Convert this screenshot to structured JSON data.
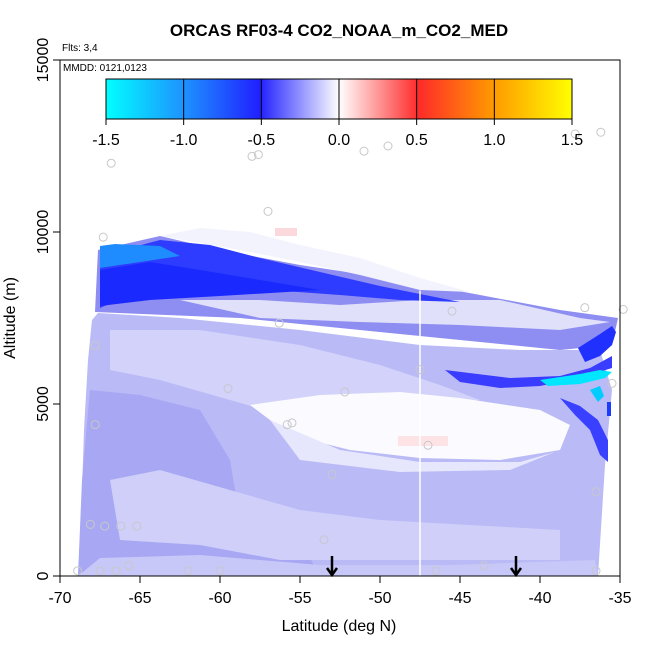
{
  "chart_data": {
    "type": "heatmap",
    "title": "ORCAS RF03-4 CO2_NOAA_m_CO2_MED",
    "flights_label": "Flts: 3,4",
    "dates_label": "MMDD: 0121,0123",
    "xlabel": "Latitude (deg N)",
    "ylabel": "Altitude (m)",
    "xlim": [
      -70,
      -35
    ],
    "ylim": [
      0,
      15000
    ],
    "x_ticks": [
      -70,
      -65,
      -60,
      -55,
      -50,
      -45,
      -40,
      -35
    ],
    "x_tick_labels": [
      "-70",
      "-65",
      "-60",
      "-55",
      "-50",
      "-45",
      "-40",
      "-35"
    ],
    "y_ticks": [
      0,
      5000,
      10000,
      15000
    ],
    "y_tick_labels": [
      "0",
      "5000",
      "10000",
      "15000"
    ],
    "colorbar": {
      "range": [
        -1.5,
        1.5
      ],
      "ticks": [
        -1.5,
        -1.0,
        -0.5,
        0.0,
        0.5,
        1.0,
        1.5
      ],
      "tick_labels": [
        "-1.5",
        "-1.0",
        "-0.5",
        "0.0",
        "0.5",
        "1.0",
        "1.5"
      ],
      "colors": [
        "#00ffff",
        "#1e90ff",
        "#2020ff",
        "#ffffff",
        "#ff2a2a",
        "#ff9900",
        "#ffff00"
      ]
    },
    "arrows_lat": [
      -53,
      -41.5
    ],
    "white_line_lat": -47.5,
    "observation_points": [
      {
        "lat": -66.8,
        "alt": 12000
      },
      {
        "lat": -58,
        "alt": 12200
      },
      {
        "lat": -57.6,
        "alt": 12250
      },
      {
        "lat": -51,
        "alt": 12350
      },
      {
        "lat": -49.5,
        "alt": 12500
      },
      {
        "lat": -36.2,
        "alt": 12900
      },
      {
        "lat": -37.8,
        "alt": 12850
      },
      {
        "lat": -57,
        "alt": 10600
      },
      {
        "lat": -67.3,
        "alt": 9850
      },
      {
        "lat": -56.3,
        "alt": 7350
      },
      {
        "lat": -45.5,
        "alt": 7700
      },
      {
        "lat": -37.2,
        "alt": 7800
      },
      {
        "lat": -34.8,
        "alt": 7750
      },
      {
        "lat": -47.5,
        "alt": 6000
      },
      {
        "lat": -35.5,
        "alt": 5600
      },
      {
        "lat": -52.2,
        "alt": 5350
      },
      {
        "lat": -59.5,
        "alt": 5450
      },
      {
        "lat": -55.5,
        "alt": 4450
      },
      {
        "lat": -55.8,
        "alt": 4400
      },
      {
        "lat": -67.8,
        "alt": 4400
      },
      {
        "lat": -47,
        "alt": 3800
      },
      {
        "lat": -53,
        "alt": 2950
      },
      {
        "lat": -36.5,
        "alt": 2450
      },
      {
        "lat": -68.1,
        "alt": 1500
      },
      {
        "lat": -67.2,
        "alt": 1450
      },
      {
        "lat": -66.2,
        "alt": 1450
      },
      {
        "lat": -65.2,
        "alt": 1450
      },
      {
        "lat": -53.5,
        "alt": 1050
      },
      {
        "lat": -65.7,
        "alt": 300
      },
      {
        "lat": -67.5,
        "alt": 150
      },
      {
        "lat": -66.5,
        "alt": 150
      },
      {
        "lat": -68.9,
        "alt": 150
      },
      {
        "lat": -62,
        "alt": 150
      },
      {
        "lat": -60,
        "alt": 150
      },
      {
        "lat": -46.5,
        "alt": 150
      },
      {
        "lat": -43.5,
        "alt": 300
      },
      {
        "lat": -36.5,
        "alt": 150
      },
      {
        "lat": -67.8,
        "alt": 6700
      }
    ]
  }
}
